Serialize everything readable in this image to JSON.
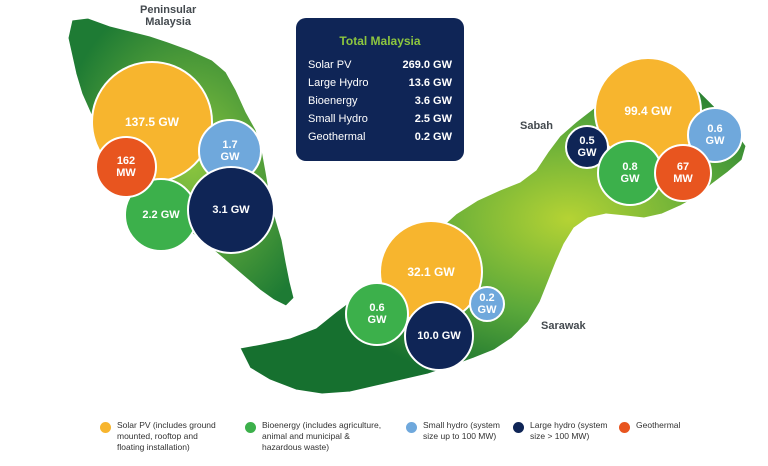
{
  "regions": {
    "peninsular": "Peninsular\nMalaysia",
    "sabah": "Sabah",
    "sarawak": "Sarawak"
  },
  "summary": {
    "title": "Total Malaysia",
    "rows": [
      {
        "label": "Solar PV",
        "value": "269.0 GW"
      },
      {
        "label": "Large Hydro",
        "value": "13.6 GW"
      },
      {
        "label": "Bioenergy",
        "value": "3.6 GW"
      },
      {
        "label": "Small Hydro",
        "value": "2.5 GW"
      },
      {
        "label": "Geothermal",
        "value": "0.2 GW"
      }
    ]
  },
  "bubbles": {
    "peninsular": {
      "solar": "137.5 GW",
      "geothermal": "162\nMW",
      "small_hydro": "1.7\nGW",
      "bioenergy": "2.2 GW",
      "large_hydro": "3.1 GW"
    },
    "sabah": {
      "solar": "99.4 GW",
      "large_hydro": "0.5\nGW",
      "small_hydro": "0.6\nGW",
      "bioenergy": "0.8\nGW",
      "geothermal": "67\nMW"
    },
    "sarawak": {
      "solar": "32.1 GW",
      "bioenergy": "0.6\nGW",
      "small_hydro": "0.2\nGW",
      "large_hydro": "10.0 GW"
    }
  },
  "legend": [
    {
      "label": "Solar PV (includes ground\nmounted, rooftop and\nfloating installation)",
      "color": "#f7b52e"
    },
    {
      "label": "Bioenergy (includes agriculture,\nanimal and municipal &\nhazardous waste)",
      "color": "#3cb04b"
    },
    {
      "label": "Small hydro (system\nsize up to 100 MW)",
      "color": "#6fa8dc"
    },
    {
      "label": "Large hydro (system\nsize > 100 MW)",
      "color": "#0f2556"
    },
    {
      "label": "Geothermal",
      "color": "#e8551f"
    }
  ]
}
